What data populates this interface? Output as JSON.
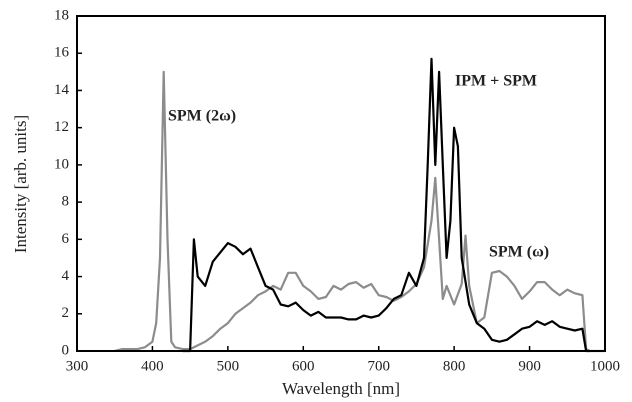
{
  "chart_data": {
    "type": "line",
    "xlabel": "Wavelength [nm]",
    "ylabel": "Intensity [arb. units]",
    "xlim": [
      300,
      1000
    ],
    "ylim": [
      0,
      18
    ],
    "xticks": [
      300,
      400,
      500,
      600,
      700,
      800,
      900,
      1000
    ],
    "yticks": [
      0,
      2,
      4,
      6,
      8,
      10,
      12,
      14,
      16,
      18
    ],
    "series": [
      {
        "color": "#8c8c8c",
        "x": [
          350,
          360,
          370,
          380,
          390,
          400,
          405,
          410,
          415,
          420,
          425,
          430,
          440,
          450,
          460,
          470,
          480,
          490,
          500,
          510,
          520,
          530,
          540,
          550,
          560,
          570,
          580,
          590,
          600,
          610,
          620,
          630,
          640,
          650,
          660,
          670,
          680,
          690,
          700,
          710,
          720,
          730,
          740,
          750,
          760,
          770,
          775,
          780,
          785,
          790,
          800,
          810,
          815,
          820,
          830,
          840,
          850,
          860,
          870,
          880,
          890,
          900,
          910,
          920,
          930,
          940,
          950,
          960,
          970,
          975,
          980,
          1000
        ],
        "values": [
          0,
          0.1,
          0.1,
          0.1,
          0.2,
          0.5,
          1.5,
          5,
          15,
          6,
          0.5,
          0.2,
          0.1,
          0.1,
          0.3,
          0.5,
          0.8,
          1.2,
          1.5,
          2,
          2.3,
          2.6,
          3,
          3.2,
          3.5,
          3.3,
          4.2,
          4.2,
          3.5,
          3.2,
          2.8,
          2.9,
          3.5,
          3.3,
          3.6,
          3.7,
          3.4,
          3.6,
          3,
          2.9,
          2.7,
          2.9,
          3.2,
          3.6,
          4.5,
          7,
          9.3,
          6,
          2.8,
          3.5,
          2.5,
          3.6,
          6.2,
          3.5,
          1.5,
          1.8,
          4.2,
          4.3,
          4,
          3.5,
          2.8,
          3.2,
          3.7,
          3.7,
          3.3,
          3,
          3.3,
          3.1,
          3,
          0.1,
          0,
          0
        ]
      },
      {
        "name": "IPM + SPM",
        "color": "#000000",
        "x": [
          440,
          450,
          455,
          460,
          470,
          480,
          490,
          500,
          510,
          520,
          530,
          540,
          550,
          560,
          570,
          580,
          590,
          600,
          610,
          620,
          630,
          640,
          650,
          660,
          670,
          680,
          690,
          700,
          710,
          720,
          730,
          740,
          750,
          760,
          765,
          770,
          775,
          780,
          785,
          790,
          795,
          800,
          805,
          810,
          820,
          830,
          840,
          850,
          860,
          870,
          880,
          890,
          900,
          910,
          920,
          930,
          940,
          950,
          960,
          970,
          975,
          980
        ],
        "values": [
          0,
          0,
          6,
          4,
          3.5,
          4.8,
          5.3,
          5.8,
          5.6,
          5.2,
          5.5,
          4.5,
          3.5,
          3.3,
          2.5,
          2.4,
          2.6,
          2.2,
          1.9,
          2.1,
          1.8,
          1.8,
          1.8,
          1.7,
          1.7,
          1.9,
          1.8,
          1.9,
          2.3,
          2.8,
          3,
          4.2,
          3.5,
          5,
          10,
          15.7,
          10,
          15,
          10,
          5,
          7,
          12,
          11,
          5,
          2.5,
          1.5,
          1.2,
          0.6,
          0.5,
          0.6,
          0.9,
          1.2,
          1.3,
          1.6,
          1.4,
          1.6,
          1.3,
          1.2,
          1.1,
          1.2,
          0,
          0
        ]
      }
    ],
    "annotations": [
      {
        "text": "SPM (2ω)",
        "color": "#8c8c8c"
      },
      {
        "text": "SPM (ω)",
        "color": "#8c8c8c"
      }
    ]
  }
}
